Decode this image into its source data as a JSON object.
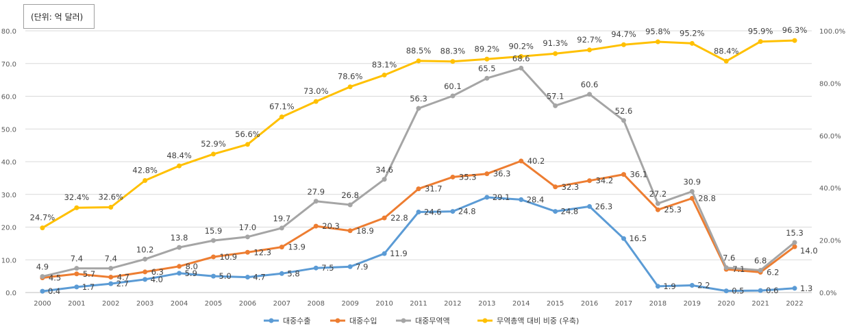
{
  "unit_note": "(단위: 억 달러)",
  "colors": {
    "export": "#5B9BD5",
    "import": "#ED7D31",
    "trade": "#A5A5A5",
    "share": "#FFC000"
  },
  "chart_data": {
    "type": "line",
    "categories": [
      "2000",
      "2001",
      "2002",
      "2003",
      "2004",
      "2005",
      "2006",
      "2007",
      "2008",
      "2009",
      "2010",
      "2011",
      "2012",
      "2013",
      "2014",
      "2015",
      "2016",
      "2017",
      "2018",
      "2019",
      "2020",
      "2021",
      "2022"
    ],
    "y_ticks": [
      "0.0",
      "10.0",
      "20.0",
      "30.0",
      "40.0",
      "50.0",
      "60.0",
      "70.0",
      "80.0"
    ],
    "y2_ticks": [
      "0.0%",
      "20.0%",
      "40.0%",
      "60.0%",
      "80.0%",
      "100.0%"
    ],
    "ylim": [
      0,
      80
    ],
    "y2lim": [
      0,
      100
    ],
    "legend_position": "bottom",
    "grid": true,
    "series": [
      {
        "name": "대중수출",
        "axis": "left",
        "values": [
          0.4,
          1.7,
          2.7,
          4.0,
          5.9,
          5.0,
          4.7,
          5.8,
          7.5,
          7.9,
          11.9,
          24.6,
          24.8,
          29.1,
          28.4,
          24.8,
          26.3,
          16.5,
          1.9,
          2.2,
          0.5,
          0.6,
          1.3
        ],
        "labels": [
          "0.4",
          "1.7",
          "2.7",
          "4.0",
          "5.9",
          "5.0",
          "4.7",
          "5.8",
          "7.5",
          "7.9",
          "11.9",
          "24.6",
          "24.8",
          "29.1",
          "28.4",
          "24.8",
          "26.3",
          "16.5",
          "1.9",
          "2.2",
          "0.5",
          "0.6",
          "1.3"
        ]
      },
      {
        "name": "대중수입",
        "axis": "left",
        "values": [
          4.5,
          5.7,
          4.7,
          6.3,
          8.0,
          10.9,
          12.3,
          13.9,
          20.3,
          18.9,
          22.8,
          31.7,
          35.3,
          36.3,
          40.2,
          32.3,
          34.2,
          36.1,
          25.3,
          28.8,
          7.1,
          6.2,
          14.0
        ],
        "labels": [
          "4.5",
          "5.7",
          "4.7",
          "6.3",
          "8.0",
          "10.9",
          "12.3",
          "13.9",
          "20.3",
          "18.9",
          "22.8",
          "31.7",
          "35.3",
          "36.3",
          "40.2",
          "32.3",
          "34.2",
          "36.1",
          "25.3",
          "28.8",
          "7.1",
          "6.2",
          "14.0"
        ]
      },
      {
        "name": "대중무역액",
        "axis": "left",
        "values": [
          4.9,
          7.4,
          7.4,
          10.2,
          13.8,
          15.9,
          17.0,
          19.7,
          27.9,
          26.8,
          34.6,
          56.3,
          60.1,
          65.5,
          68.6,
          57.1,
          60.6,
          52.6,
          27.2,
          30.9,
          7.6,
          6.8,
          15.3
        ],
        "labels": [
          "4.9",
          "7.4",
          "7.4",
          "10.2",
          "13.8",
          "15.9",
          "17.0",
          "19.7",
          "27.9",
          "26.8",
          "34.6",
          "56.3",
          "60.1",
          "65.5",
          "68.6",
          "57.1",
          "60.6",
          "52.6",
          "27.2",
          "30.9",
          "7.6",
          "6.8",
          "15.3"
        ]
      },
      {
        "name": "무역총액 대비 비중 (우축)",
        "axis": "right",
        "values": [
          24.7,
          32.4,
          32.6,
          42.8,
          48.4,
          52.9,
          56.6,
          67.1,
          73.0,
          78.6,
          83.1,
          88.5,
          88.3,
          89.2,
          90.2,
          91.3,
          92.7,
          94.7,
          95.8,
          95.2,
          88.4,
          95.9,
          96.3
        ],
        "labels": [
          "24.7%",
          "32.4%",
          "32.6%",
          "42.8%",
          "48.4%",
          "52.9%",
          "56.6%",
          "67.1%",
          "73.0%",
          "78.6%",
          "83.1%",
          "88.5%",
          "88.3%",
          "89.2%",
          "90.2%",
          "91.3%",
          "92.7%",
          "94.7%",
          "95.8%",
          "95.2%",
          "88.4%",
          "95.9%",
          "96.3%"
        ]
      }
    ]
  }
}
